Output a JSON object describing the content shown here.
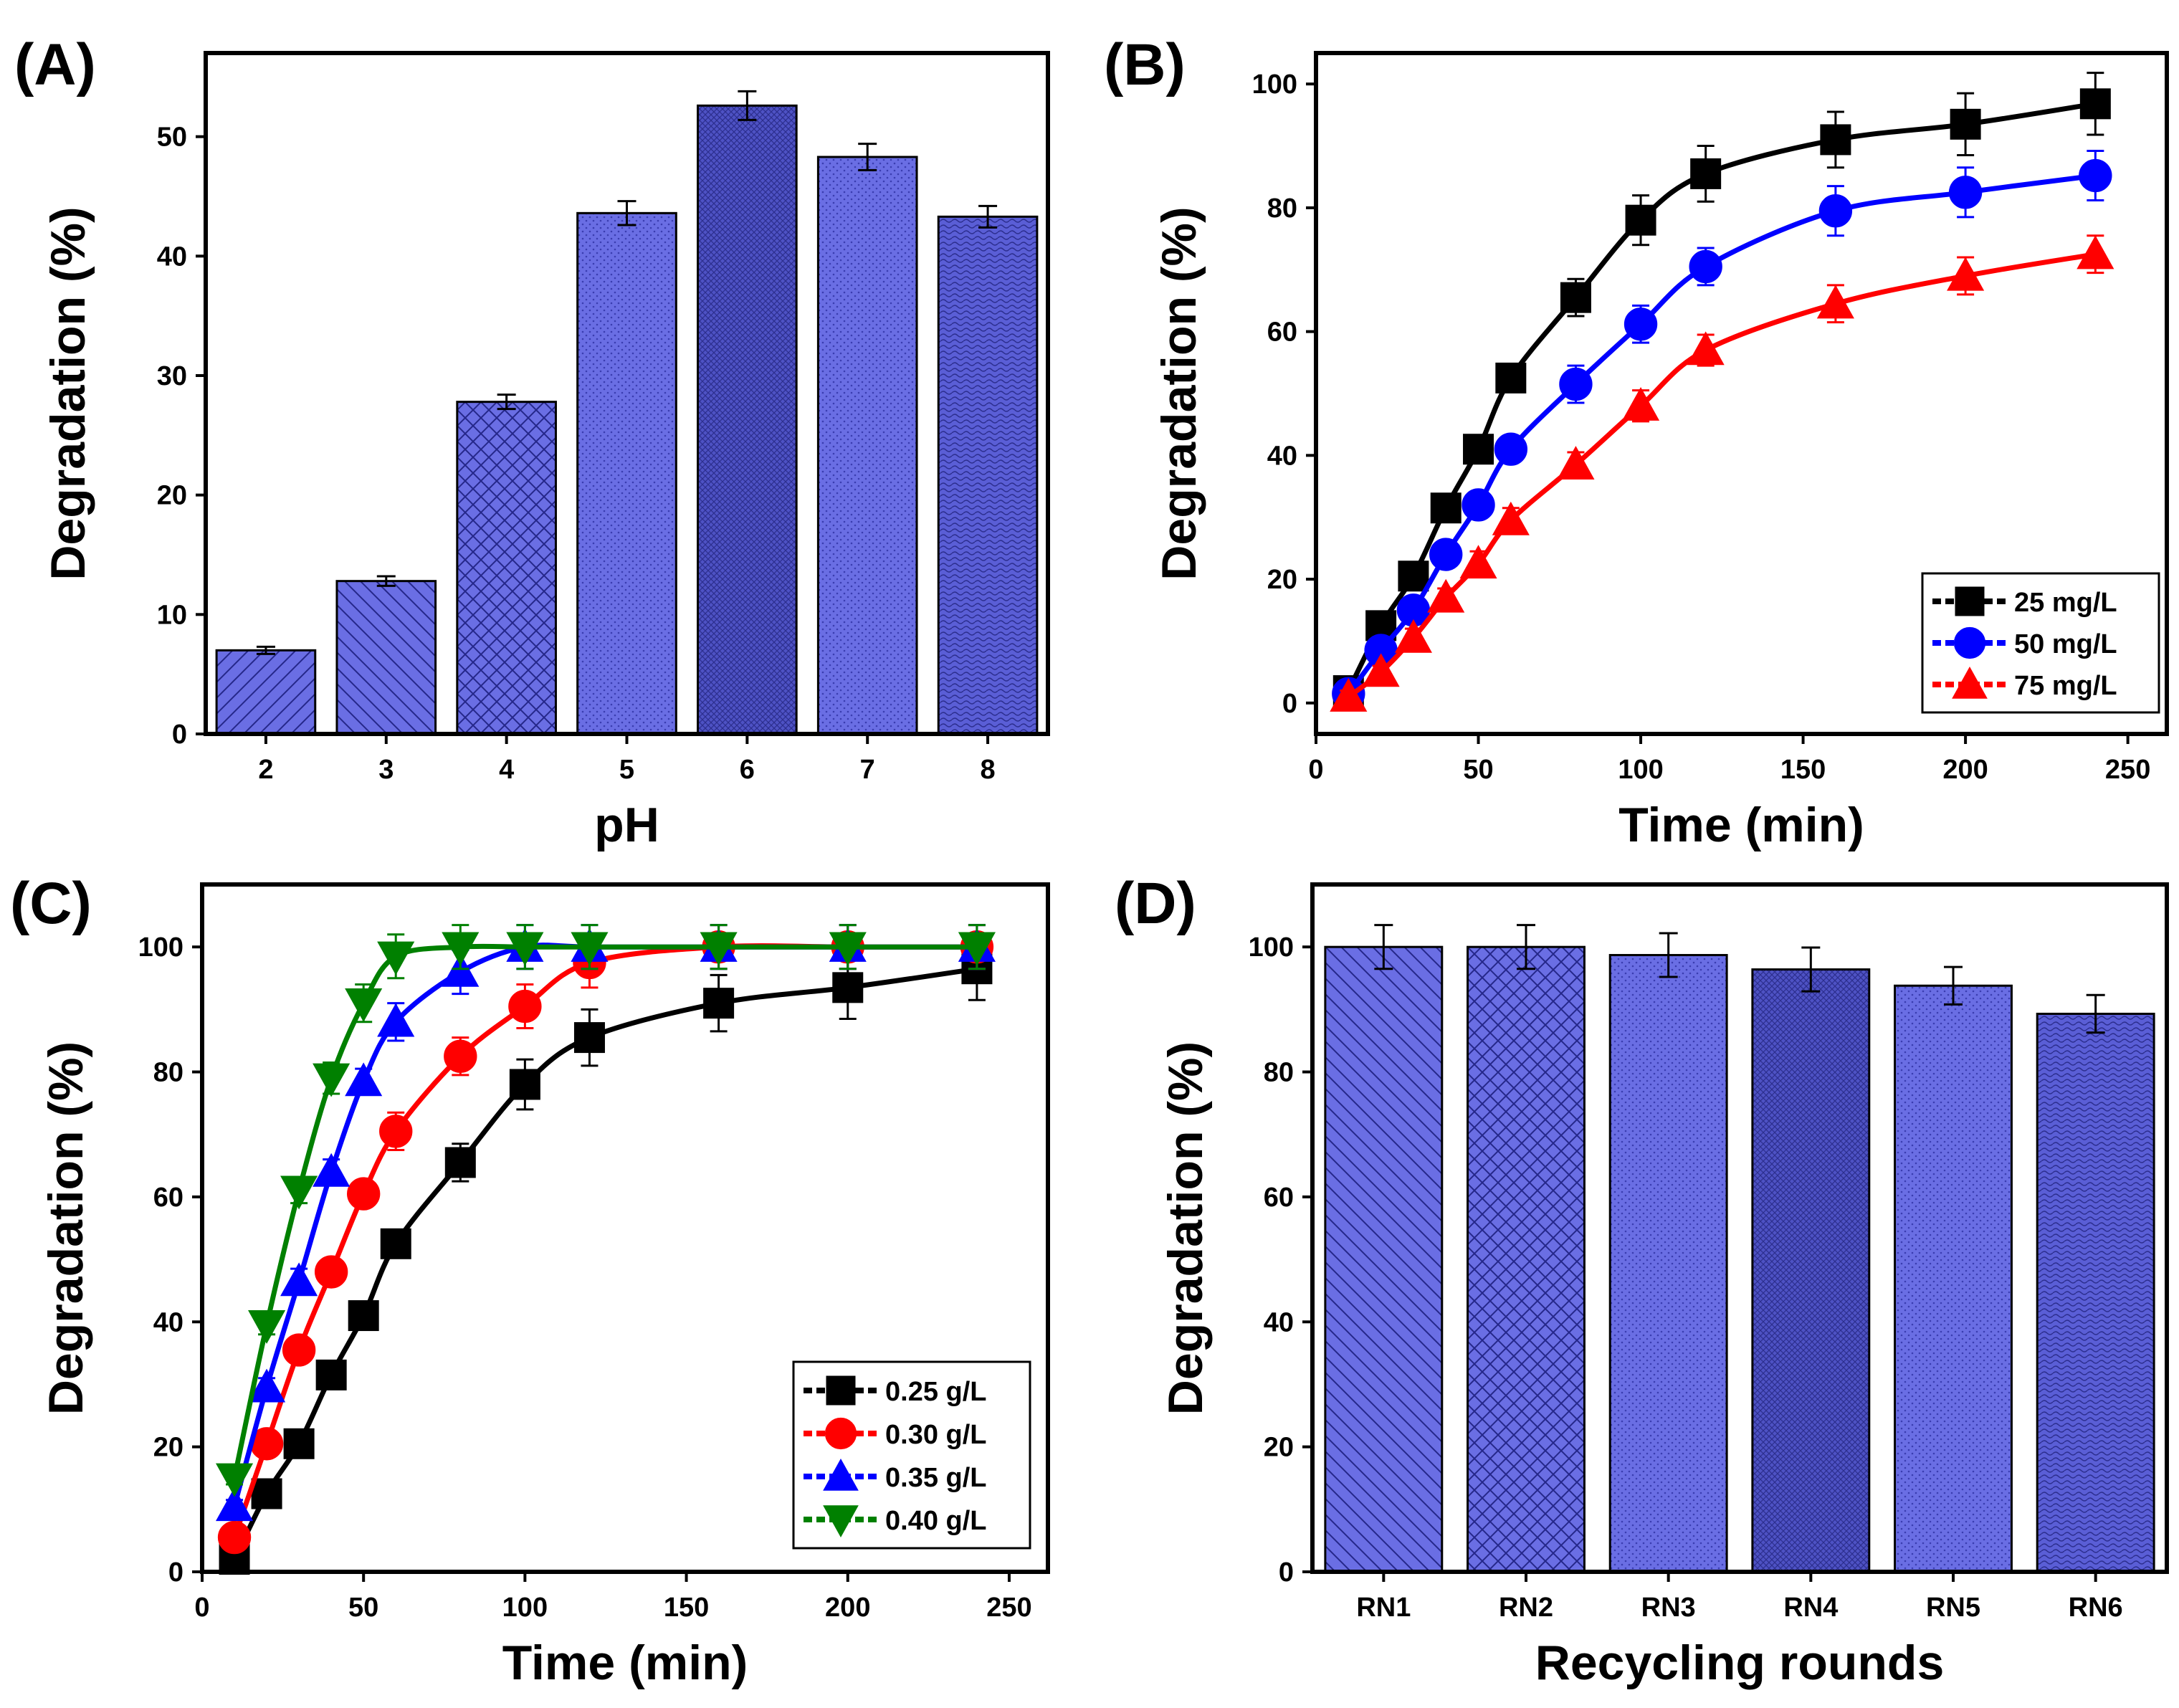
{
  "figure": {
    "panels": [
      {
        "id": "A",
        "label": "(A)"
      },
      {
        "id": "B",
        "label": "(B)"
      },
      {
        "id": "C",
        "label": "(C)"
      },
      {
        "id": "D",
        "label": "(D)"
      }
    ]
  },
  "chart_data": [
    {
      "panel": "A",
      "type": "bar",
      "title": "",
      "xlabel": "pH",
      "ylabel": "Degradation (%)",
      "categories": [
        "2",
        "3",
        "4",
        "5",
        "6",
        "7",
        "8"
      ],
      "values": [
        7.0,
        12.8,
        27.8,
        43.6,
        52.6,
        48.3,
        43.3
      ],
      "errors": [
        0.3,
        0.4,
        0.6,
        1.0,
        1.2,
        1.1,
        0.9
      ],
      "patterns": [
        "diag-fwd",
        "diag-back",
        "crosshatch",
        "dots",
        "dense",
        "dots",
        "wave"
      ],
      "ylim": [
        0,
        57
      ],
      "yticks": [
        0,
        10,
        20,
        30,
        40,
        50
      ],
      "bar_color": "#6a6ee4",
      "bar_dark_color": "#4e52c4"
    },
    {
      "panel": "B",
      "type": "line",
      "title": "",
      "xlabel": "Time (min)",
      "ylabel": "Degradation (%)",
      "xlim": [
        0,
        262
      ],
      "ylim": [
        -5,
        105
      ],
      "xticks": [
        0,
        50,
        100,
        150,
        200,
        250
      ],
      "yticks": [
        0,
        20,
        40,
        60,
        80,
        100
      ],
      "legend_position": "bottom-right",
      "series": [
        {
          "name": "25 mg/L",
          "color": "#000000",
          "marker": "square",
          "x": [
            10,
            20,
            30,
            40,
            50,
            60,
            80,
            100,
            120,
            160,
            200,
            240
          ],
          "y": [
            2,
            12.5,
            20.5,
            31.5,
            41,
            52.5,
            65.5,
            78,
            85.5,
            91,
            93.5,
            96.8
          ],
          "err": [
            1,
            1.5,
            1.5,
            2,
            2,
            2,
            3,
            4,
            4.5,
            4.5,
            5,
            5
          ]
        },
        {
          "name": "50 mg/L",
          "color": "#0000ff",
          "marker": "circle",
          "x": [
            10,
            20,
            30,
            40,
            50,
            60,
            80,
            100,
            120,
            160,
            200,
            240
          ],
          "y": [
            1.5,
            8.5,
            15,
            24,
            32,
            41,
            51.5,
            61.2,
            70.5,
            79.5,
            82.5,
            85.2
          ],
          "err": [
            1,
            1.5,
            1.5,
            2,
            2,
            2,
            3,
            3,
            3,
            4,
            4,
            4
          ]
        },
        {
          "name": "75 mg/L",
          "color": "#ff0000",
          "marker": "triangle-up",
          "x": [
            10,
            20,
            30,
            40,
            50,
            60,
            80,
            100,
            120,
            160,
            200,
            240
          ],
          "y": [
            1,
            5,
            10.5,
            17,
            22.5,
            29.5,
            38.5,
            48,
            57,
            64.5,
            69,
            72.5
          ],
          "err": [
            1,
            1,
            1.5,
            1.5,
            2,
            2,
            2,
            2.5,
            2.5,
            3,
            3,
            3
          ]
        }
      ]
    },
    {
      "panel": "C",
      "type": "line",
      "title": "",
      "xlabel": "Time (min)",
      "ylabel": "Degradation (%)",
      "xlim": [
        0,
        262
      ],
      "ylim": [
        0,
        110
      ],
      "xticks": [
        0,
        50,
        100,
        150,
        200,
        250
      ],
      "yticks": [
        0,
        20,
        40,
        60,
        80,
        100
      ],
      "legend_position": "bottom-right",
      "series": [
        {
          "name": "0.25 g/L",
          "color": "#000000",
          "marker": "square",
          "x": [
            10,
            20,
            30,
            40,
            50,
            60,
            80,
            100,
            120,
            160,
            200,
            240
          ],
          "y": [
            2,
            12.5,
            20.5,
            31.5,
            41,
            52.5,
            65.5,
            78,
            85.5,
            91,
            93.5,
            96.5
          ],
          "err": [
            1,
            1.5,
            1.5,
            2,
            2,
            2,
            3,
            4,
            4.5,
            4.5,
            5,
            5
          ]
        },
        {
          "name": "0.30 g/L",
          "color": "#ff0000",
          "marker": "circle",
          "x": [
            10,
            20,
            30,
            40,
            50,
            60,
            80,
            100,
            120,
            160,
            200,
            240
          ],
          "y": [
            5.5,
            20.5,
            35.5,
            48,
            60.5,
            70.5,
            82.5,
            90.5,
            97.5,
            100,
            100,
            100
          ],
          "err": [
            1,
            1.5,
            2,
            2,
            2,
            3,
            3,
            3.5,
            4,
            3.5,
            3.5,
            3.5
          ]
        },
        {
          "name": "0.35 g/L",
          "color": "#0000ff",
          "marker": "triangle-up",
          "x": [
            10,
            20,
            30,
            40,
            50,
            60,
            80,
            100,
            120,
            160,
            200,
            240
          ],
          "y": [
            10.5,
            29.5,
            46.5,
            64,
            78.5,
            88,
            96,
            100,
            100,
            100,
            100,
            100
          ],
          "err": [
            1,
            1.5,
            2,
            2,
            2,
            3,
            3.5,
            3.5,
            3.5,
            3.5,
            3.5,
            3.5
          ]
        },
        {
          "name": "0.40 g/L",
          "color": "#008000",
          "marker": "triangle-down",
          "x": [
            10,
            20,
            30,
            40,
            50,
            60,
            80,
            100,
            120,
            160,
            200,
            240
          ],
          "y": [
            15,
            39.5,
            61,
            79,
            91,
            98.5,
            100,
            100,
            100,
            100,
            100,
            100
          ],
          "err": [
            1,
            1.5,
            2,
            2.5,
            3,
            3.5,
            3.5,
            3.5,
            3.5,
            3.5,
            3.5,
            3.5
          ]
        }
      ]
    },
    {
      "panel": "D",
      "type": "bar",
      "title": "",
      "xlabel": "Recycling rounds",
      "ylabel": "Degradation (%)",
      "categories": [
        "RN1",
        "RN2",
        "RN3",
        "RN4",
        "RN5",
        "RN6"
      ],
      "values": [
        100,
        100,
        98.7,
        96.4,
        93.8,
        89.3
      ],
      "errors": [
        3.5,
        3.5,
        3.5,
        3.5,
        3.0,
        3.0
      ],
      "patterns": [
        "diag-back",
        "crosshatch",
        "dots",
        "dense",
        "dots",
        "wave"
      ],
      "ylim": [
        0,
        110
      ],
      "yticks": [
        0,
        20,
        40,
        60,
        80,
        100
      ],
      "bar_color": "#6a6ee4",
      "bar_dark_color": "#4e52c4"
    }
  ]
}
